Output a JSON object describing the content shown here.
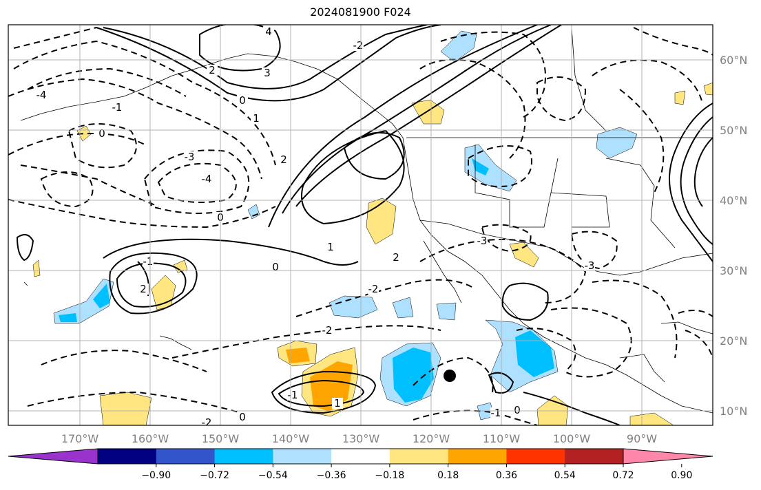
{
  "title": "2024081900 F024",
  "map": {
    "lat_labels": [
      "60°N",
      "50°N",
      "40°N",
      "30°N",
      "20°N",
      "10°N"
    ],
    "lon_labels": [
      "170°W",
      "160°W",
      "150°W",
      "140°W",
      "130°W",
      "120°W",
      "110°W",
      "100°W",
      "90°W"
    ],
    "contour_labels": [
      "4",
      "3",
      "2",
      "0",
      "-2",
      "-4",
      "-1",
      "1",
      "0",
      "2",
      "-3",
      "-4",
      "0",
      "-3",
      "2",
      "-2",
      "1",
      "0",
      "-1",
      "2",
      "-2",
      "0",
      "1",
      "-1",
      "-2",
      "-3",
      "0",
      "-1"
    ]
  },
  "colorbar": {
    "tick_labels": [
      "−0.90",
      "−0.72",
      "−0.54",
      "−0.36",
      "−0.18",
      "0.18",
      "0.36",
      "0.54",
      "0.72",
      "0.90"
    ],
    "colors": [
      "#9933cc",
      "#000080",
      "#3355cc",
      "#00bfff",
      "#aee0ff",
      "#ffffff",
      "#ffe680",
      "#ffa500",
      "#ff3300",
      "#b22222",
      "#ff88aa"
    ]
  },
  "legend_colors": {
    "neg_weak": "#aee0ff",
    "neg_mid": "#00bfff",
    "pos_weak": "#ffe680",
    "pos_mid": "#ffa500"
  }
}
